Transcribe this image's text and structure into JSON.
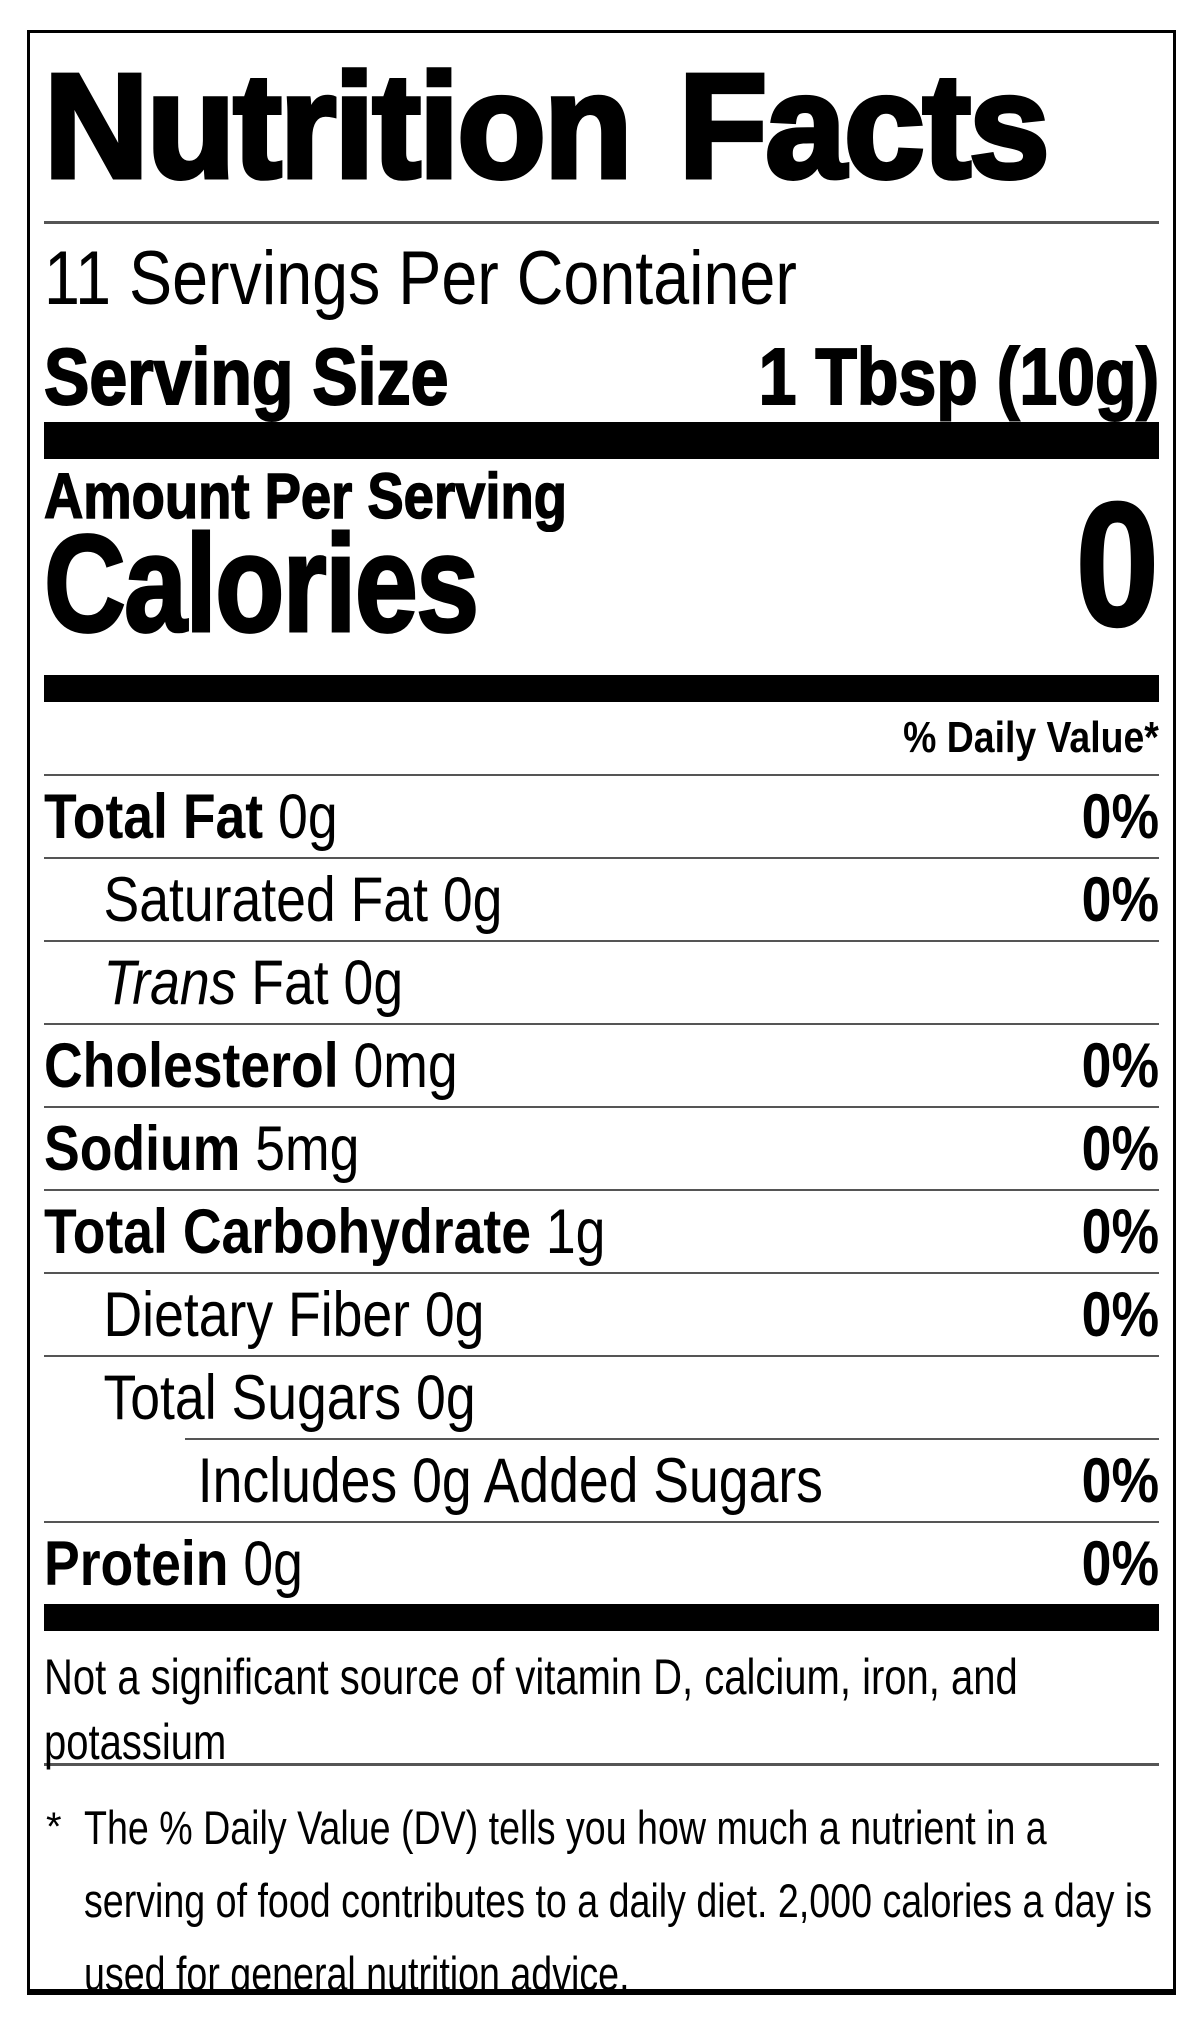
{
  "label": {
    "title": "Nutrition Facts",
    "servings_per_container": "11 Servings Per Container",
    "serving_size_label": "Serving Size",
    "serving_size_value": "1 Tbsp (10g)",
    "amount_per_serving": "Amount Per Serving",
    "calories_label": "Calories",
    "calories_value": "0",
    "daily_value_header": "% Daily Value*",
    "rows": [
      {
        "name": "total-fat",
        "strong": "Total Fat",
        "em": "",
        "text": " 0g",
        "dv": "0%"
      },
      {
        "name": "saturated-fat",
        "strong": "",
        "em": "",
        "text": "Saturated Fat 0g",
        "dv": "0%"
      },
      {
        "name": "trans-fat",
        "strong": "",
        "em": "Trans",
        "text": " Fat 0g",
        "dv": ""
      },
      {
        "name": "cholesterol",
        "strong": "Cholesterol",
        "em": "",
        "text": " 0mg",
        "dv": "0%"
      },
      {
        "name": "sodium",
        "strong": "Sodium",
        "em": "",
        "text": " 5mg",
        "dv": "0%"
      },
      {
        "name": "total-carbohydrate",
        "strong": "Total Carbohydrate",
        "em": "",
        "text": " 1g",
        "dv": "0%"
      },
      {
        "name": "dietary-fiber",
        "strong": "",
        "em": "",
        "text": "Dietary Fiber 0g",
        "dv": "0%"
      },
      {
        "name": "total-sugars",
        "strong": "",
        "em": "",
        "text": "Total Sugars 0g",
        "dv": ""
      },
      {
        "name": "added-sugars",
        "strong": "",
        "em": "",
        "text": "Includes 0g Added Sugars",
        "dv": "0%"
      },
      {
        "name": "protein",
        "strong": "Protein",
        "em": "",
        "text": " 0g",
        "dv": "0%"
      }
    ],
    "not_significant": "Not a significant source of vitamin D, calcium, iron, and potassium",
    "footnote_marker": "*",
    "footnote": "The % Daily Value (DV) tells you how much a nutrient in a serving of food contributes to a daily diet. 2,000 calories a day is used for general nutrition advice.",
    "colors": {
      "text": "#000000",
      "bars": "#000000",
      "hairline": "#555555",
      "background": "#ffffff"
    }
  }
}
